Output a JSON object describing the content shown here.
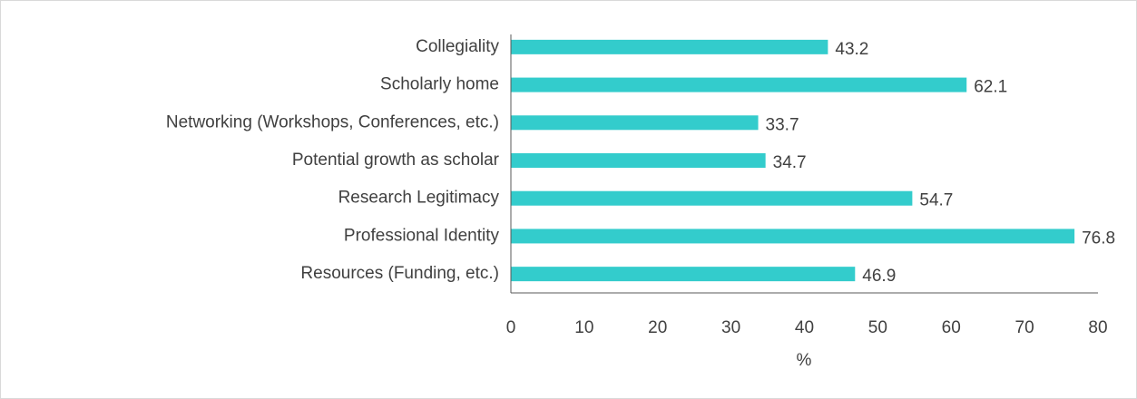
{
  "chart_data": {
    "type": "barh",
    "categories": [
      "Collegiality",
      "Scholarly home",
      "Networking (Workshops, Conferences, etc.)",
      "Potential growth as scholar",
      "Research Legitimacy",
      "Professional Identity",
      "Resources (Funding, etc.)"
    ],
    "values": [
      43.2,
      62.1,
      33.7,
      34.7,
      54.7,
      76.8,
      46.9
    ],
    "color": "#33cccc",
    "xlabel": "%",
    "xlim": [
      0,
      80
    ],
    "xticks": [
      0,
      10,
      20,
      30,
      40,
      50,
      60,
      70,
      80
    ],
    "grid": false
  }
}
